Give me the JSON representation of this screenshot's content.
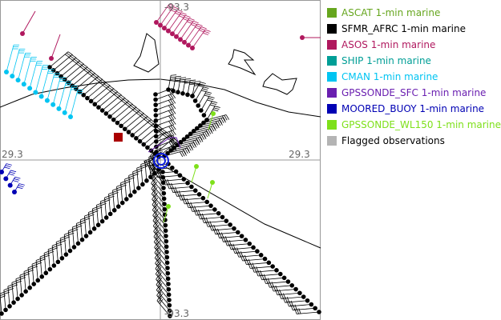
{
  "map": {
    "axis_labels": {
      "top": "-93.3",
      "bottom": "-93.3",
      "left": "29.3",
      "right": "29.3"
    }
  },
  "legend": {
    "items": [
      {
        "label": "ASCAT 1-min marine",
        "color": "#66a61e"
      },
      {
        "label": "SFMR_AFRC 1-min marine",
        "color": "#000000"
      },
      {
        "label": "ASOS 1-min marine",
        "color": "#b0185e"
      },
      {
        "label": "SHIP 1-min marine",
        "color": "#009e96"
      },
      {
        "label": "CMAN 1-min marine",
        "color": "#00c4f2"
      },
      {
        "label": "GPSSONDE_SFC 1-min marine",
        "color": "#6a1fb0"
      },
      {
        "label": "MOORED_BUOY 1-min marine",
        "color": "#0000b4"
      },
      {
        "label": "GPSSONDE_WL150 1-min marine",
        "color": "#7ee01a"
      },
      {
        "label": "Flagged observations",
        "color": "#b4b4b4"
      }
    ]
  }
}
